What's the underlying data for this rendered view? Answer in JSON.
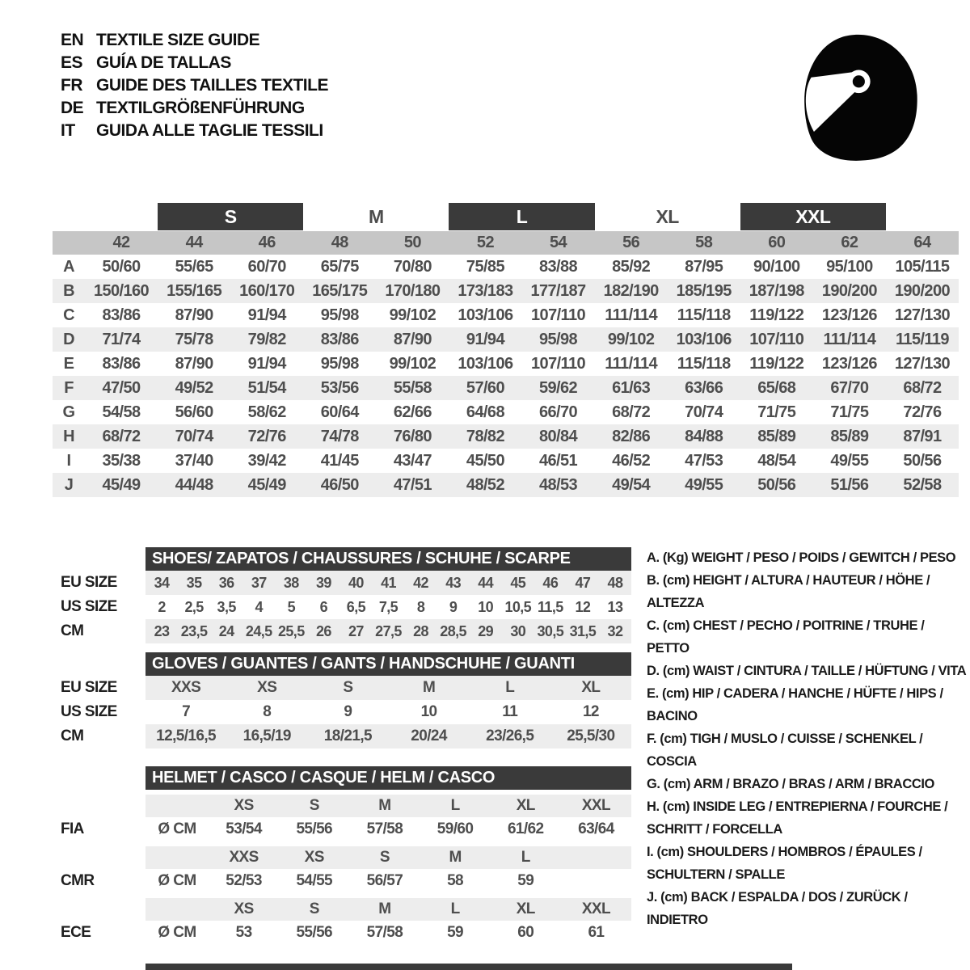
{
  "header": {
    "languages": [
      {
        "code": "EN",
        "title": "TEXTILE SIZE GUIDE"
      },
      {
        "code": "ES",
        "title": "GUÍA DE TALLAS"
      },
      {
        "code": "FR",
        "title": "GUIDE DES TAILLES TEXTILE"
      },
      {
        "code": "DE",
        "title": "TEXTILGRÖßENFÜHRUNG"
      },
      {
        "code": "IT",
        "title": "GUIDA ALLE TAGLIE TESSILI"
      }
    ]
  },
  "textile_table": {
    "letter_sizes": {
      "s": "S",
      "m": "M",
      "l": "L",
      "xl": "XL",
      "xxl": "XXL"
    },
    "numeric_sizes": [
      "42",
      "44",
      "46",
      "48",
      "50",
      "52",
      "54",
      "56",
      "58",
      "60",
      "62",
      "64"
    ],
    "rows": [
      {
        "key": "A",
        "values": [
          "50/60",
          "55/65",
          "60/70",
          "65/75",
          "70/80",
          "75/85",
          "83/88",
          "85/92",
          "87/95",
          "90/100",
          "95/100",
          "105/115"
        ]
      },
      {
        "key": "B",
        "values": [
          "150/160",
          "155/165",
          "160/170",
          "165/175",
          "170/180",
          "173/183",
          "177/187",
          "182/190",
          "185/195",
          "187/198",
          "190/200",
          "190/200"
        ]
      },
      {
        "key": "C",
        "values": [
          "83/86",
          "87/90",
          "91/94",
          "95/98",
          "99/102",
          "103/106",
          "107/110",
          "111/114",
          "115/118",
          "119/122",
          "123/126",
          "127/130"
        ]
      },
      {
        "key": "D",
        "values": [
          "71/74",
          "75/78",
          "79/82",
          "83/86",
          "87/90",
          "91/94",
          "95/98",
          "99/102",
          "103/106",
          "107/110",
          "111/114",
          "115/119"
        ]
      },
      {
        "key": "E",
        "values": [
          "83/86",
          "87/90",
          "91/94",
          "95/98",
          "99/102",
          "103/106",
          "107/110",
          "111/114",
          "115/118",
          "119/122",
          "123/126",
          "127/130"
        ]
      },
      {
        "key": "F",
        "values": [
          "47/50",
          "49/52",
          "51/54",
          "53/56",
          "55/58",
          "57/60",
          "59/62",
          "61/63",
          "63/66",
          "65/68",
          "67/70",
          "68/72"
        ]
      },
      {
        "key": "G",
        "values": [
          "54/58",
          "56/60",
          "58/62",
          "60/64",
          "62/66",
          "64/68",
          "66/70",
          "68/72",
          "70/74",
          "71/75",
          "71/75",
          "72/76"
        ]
      },
      {
        "key": "H",
        "values": [
          "68/72",
          "70/74",
          "72/76",
          "74/78",
          "76/80",
          "78/82",
          "80/84",
          "82/86",
          "84/88",
          "85/89",
          "85/89",
          "87/91"
        ]
      },
      {
        "key": "I",
        "values": [
          "35/38",
          "37/40",
          "39/42",
          "41/45",
          "43/47",
          "45/50",
          "46/51",
          "46/52",
          "47/53",
          "48/54",
          "49/55",
          "50/56"
        ]
      },
      {
        "key": "J",
        "values": [
          "45/49",
          "44/48",
          "45/49",
          "46/50",
          "47/51",
          "48/52",
          "48/53",
          "49/54",
          "49/55",
          "50/56",
          "51/56",
          "52/58"
        ]
      }
    ]
  },
  "shoes_table": {
    "title": "SHOES/ ZAPATOS / CHAUSSURES / SCHUHE / SCARPE",
    "rows": [
      {
        "label": "EU SIZE",
        "values": [
          "34",
          "35",
          "36",
          "37",
          "38",
          "39",
          "40",
          "41",
          "42",
          "43",
          "44",
          "45",
          "46",
          "47",
          "48"
        ]
      },
      {
        "label": "US SIZE",
        "values": [
          "2",
          "2,5",
          "3,5",
          "4",
          "5",
          "6",
          "6,5",
          "7,5",
          "8",
          "9",
          "10",
          "10,5",
          "11,5",
          "12",
          "13"
        ]
      },
      {
        "label": "CM",
        "values": [
          "23",
          "23,5",
          "24",
          "24,5",
          "25,5",
          "26",
          "27",
          "27,5",
          "28",
          "28,5",
          "29",
          "30",
          "30,5",
          "31,5",
          "32"
        ]
      }
    ]
  },
  "gloves_table": {
    "title": "GLOVES / GUANTES / GANTS / HANDSCHUHE / GUANTI",
    "rows": [
      {
        "label": "EU SIZE",
        "values": [
          "XXS",
          "XS",
          "S",
          "M",
          "L",
          "XL"
        ]
      },
      {
        "label": "US SIZE",
        "values": [
          "7",
          "8",
          "9",
          "10",
          "11",
          "12"
        ]
      },
      {
        "label": "CM",
        "values": [
          "12,5/16,5",
          "16,5/19",
          "18/21,5",
          "20/24",
          "23/26,5",
          "25,5/30"
        ]
      }
    ]
  },
  "helmet_table": {
    "title": "HELMET / CASCO / CASQUE / HELM / CASCO",
    "groups": [
      {
        "label": "FIA",
        "unit": "Ø CM",
        "sizes": [
          "XS",
          "S",
          "M",
          "L",
          "XL",
          "XXL"
        ],
        "values": [
          "53/54",
          "55/56",
          "57/58",
          "59/60",
          "61/62",
          "63/64"
        ]
      },
      {
        "label": "CMR",
        "unit": "Ø CM",
        "sizes": [
          "XXS",
          "XS",
          "S",
          "M",
          "L"
        ],
        "values": [
          "52/53",
          "54/55",
          "56/57",
          "58",
          "59"
        ]
      },
      {
        "label": "ECE",
        "unit": "Ø CM",
        "sizes": [
          "XS",
          "S",
          "M",
          "L",
          "XL",
          "XXL"
        ],
        "values": [
          "53",
          "55/56",
          "57/58",
          "59",
          "60",
          "61"
        ]
      }
    ]
  },
  "legend": {
    "items": [
      "A. (Kg) WEIGHT / PESO / POIDS / GEWITCH / PESO",
      "B. (cm) HEIGHT / ALTURA / HAUTEUR / HÖHE / ALTEZZA",
      "C. (cm) CHEST / PECHO / POITRINE / TRUHE / PETTO",
      "D. (cm) WAIST / CINTURA / TAILLE / HÜFTUNG / VITA",
      "E. (cm) HIP / CADERA / HANCHE / HÜFTE / HIPS / BACINO",
      "F. (cm) TIGH / MUSLO / CUISSE / SCHENKEL / COSCIA",
      "G. (cm) ARM / BRAZO / BRAS / ARM / BRACCIO",
      "H. (cm) INSIDE LEG / ENTREPIERNA / FOURCHE / SCHRITT / FORCELLA",
      "I. (cm) SHOULDERS / HOMBROS / ÉPAULES / SCHULTERN / SPALLE",
      "J. (cm) BACK / ESPALDA / DOS / ZURÜCK / INDIETRO"
    ]
  },
  "icons": {
    "helmet": "racing-helmet-icon"
  },
  "colors": {
    "dark_bar": "#3a3a3a",
    "size_band": "#c6c6c6",
    "stripe": "#ededed",
    "value_text": "#4e4e4e",
    "black": "#050505"
  }
}
